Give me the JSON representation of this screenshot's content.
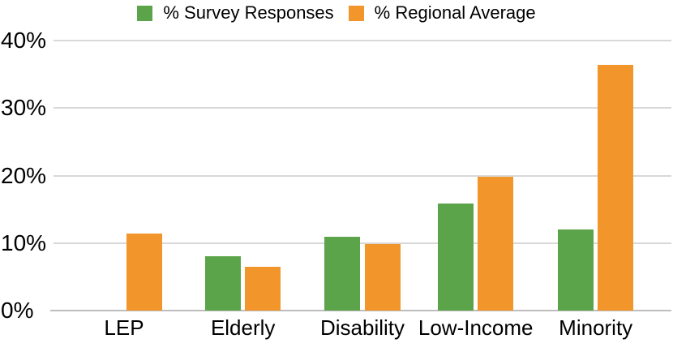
{
  "chart_data": {
    "type": "bar",
    "title": "",
    "categories": [
      "LEP",
      "Elderly",
      "Disability",
      "Low-Income",
      "Minority"
    ],
    "series": [
      {
        "name": "% Survey Responses",
        "color": "#5CA44A",
        "values": [
          0,
          8.0,
          10.9,
          15.9,
          12.0
        ]
      },
      {
        "name": "% Regional Average",
        "color": "#F2962B",
        "values": [
          11.4,
          6.5,
          9.9,
          19.8,
          36.4
        ]
      }
    ],
    "xlabel": "",
    "ylabel": "",
    "ylim": [
      0,
      40
    ],
    "yticks": [
      "0%",
      "10%",
      "20%",
      "30%",
      "40%"
    ],
    "grid": "horizontal",
    "legend_position": "top-center"
  },
  "colors": {
    "gridline": "#D8D8D8",
    "axis_line": "#BDBDBD",
    "text": "#000000",
    "background": "#FFFFFF"
  }
}
